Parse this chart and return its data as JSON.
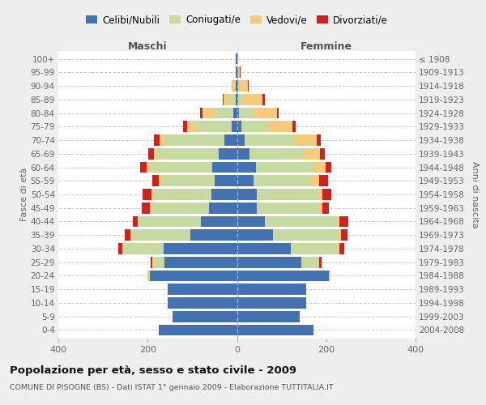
{
  "age_groups": [
    "0-4",
    "5-9",
    "10-14",
    "15-19",
    "20-24",
    "25-29",
    "30-34",
    "35-39",
    "40-44",
    "45-49",
    "50-54",
    "55-59",
    "60-64",
    "65-69",
    "70-74",
    "75-79",
    "80-84",
    "85-89",
    "90-94",
    "95-99",
    "100+"
  ],
  "birth_years": [
    "2004-2008",
    "1999-2003",
    "1994-1998",
    "1989-1993",
    "1984-1988",
    "1979-1983",
    "1974-1978",
    "1969-1973",
    "1964-1968",
    "1959-1963",
    "1954-1958",
    "1949-1953",
    "1944-1948",
    "1939-1943",
    "1934-1938",
    "1929-1933",
    "1924-1928",
    "1919-1923",
    "1914-1918",
    "1909-1913",
    "≤ 1908"
  ],
  "colors": {
    "celibi": "#4472b0",
    "coniugati": "#c5d9a0",
    "vedovi": "#f5ca7a",
    "divorziati": "#cc2222"
  },
  "maschi": {
    "celibi": [
      175,
      145,
      155,
      155,
      195,
      162,
      165,
      105,
      80,
      62,
      58,
      50,
      55,
      40,
      28,
      12,
      8,
      3,
      3,
      2,
      2
    ],
    "coniugati": [
      0,
      0,
      0,
      0,
      5,
      25,
      90,
      130,
      138,
      128,
      128,
      120,
      140,
      138,
      132,
      82,
      42,
      12,
      4,
      0,
      0
    ],
    "vedovi": [
      0,
      0,
      0,
      0,
      0,
      2,
      2,
      4,
      4,
      5,
      5,
      5,
      8,
      8,
      14,
      18,
      28,
      15,
      4,
      0,
      0
    ],
    "divorziati": [
      0,
      0,
      0,
      0,
      0,
      4,
      8,
      12,
      12,
      18,
      20,
      14,
      14,
      12,
      12,
      8,
      5,
      2,
      0,
      0,
      0
    ]
  },
  "femmine": {
    "celibi": [
      172,
      140,
      155,
      155,
      205,
      145,
      120,
      80,
      62,
      44,
      44,
      38,
      42,
      28,
      18,
      10,
      5,
      3,
      3,
      2,
      1
    ],
    "coniugati": [
      0,
      0,
      0,
      0,
      5,
      38,
      105,
      148,
      162,
      138,
      138,
      128,
      132,
      122,
      112,
      62,
      32,
      10,
      4,
      0,
      0
    ],
    "vedovi": [
      0,
      0,
      0,
      0,
      0,
      2,
      4,
      5,
      5,
      10,
      10,
      18,
      24,
      36,
      48,
      52,
      52,
      45,
      18,
      5,
      2
    ],
    "divorziati": [
      0,
      0,
      0,
      0,
      0,
      4,
      12,
      14,
      20,
      14,
      20,
      20,
      14,
      10,
      10,
      8,
      4,
      4,
      2,
      2,
      0
    ]
  },
  "xlim": 400,
  "title": "Popolazione per età, sesso e stato civile - 2009",
  "subtitle": "COMUNE DI PISOGNE (BS) - Dati ISTAT 1° gennaio 2009 - Elaborazione TUTTITALIA.IT",
  "ylabel_left": "Fasce di età",
  "ylabel_right": "Anni di nascita",
  "xlabel_maschi": "Maschi",
  "xlabel_femmine": "Femmine",
  "legend_labels": [
    "Celibi/Nubili",
    "Coniugati/e",
    "Vedovi/e",
    "Divorziati/e"
  ],
  "bg_color": "#eeeeee",
  "plot_bg_color": "#ffffff"
}
